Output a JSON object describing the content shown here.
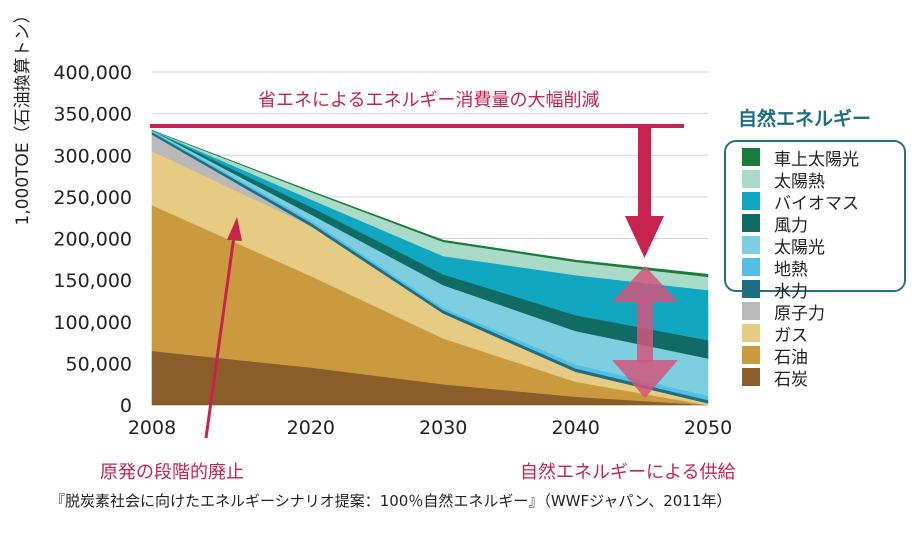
{
  "chart_data": {
    "type": "area",
    "x": [
      2008,
      2020,
      2030,
      2040,
      2050
    ],
    "ylim": [
      0,
      400000
    ],
    "ylabel": "1,000TOE（石油換算トン）",
    "xticks": [
      "2008",
      "2020",
      "2030",
      "2040",
      "2050"
    ],
    "yticks": [
      "0",
      "50,000",
      "100,000",
      "150,000",
      "200,000",
      "250,000",
      "300,000",
      "350,000",
      "400,000"
    ],
    "series": [
      {
        "name": "石炭",
        "color": "#8a5d2b",
        "values": [
          65000,
          45000,
          25000,
          10000,
          0
        ]
      },
      {
        "name": "石油",
        "color": "#c99a3e",
        "values": [
          175000,
          110000,
          55000,
          18000,
          0
        ]
      },
      {
        "name": "ガス",
        "color": "#e6cb82",
        "values": [
          65000,
          60000,
          30000,
          12000,
          2000
        ]
      },
      {
        "name": "原子力",
        "color": "#b9b9b9",
        "values": [
          20000,
          0,
          0,
          0,
          0
        ]
      },
      {
        "name": "水力",
        "color": "#1e6e82",
        "values": [
          3000,
          4000,
          4000,
          4000,
          4000
        ]
      },
      {
        "name": "地熱",
        "color": "#55bfe3",
        "values": [
          1000,
          3000,
          3000,
          5000,
          5000
        ]
      },
      {
        "name": "太陽光",
        "color": "#7dcfe0",
        "values": [
          1000,
          7000,
          27000,
          40000,
          45000
        ]
      },
      {
        "name": "風力",
        "color": "#0f6b64",
        "values": [
          0,
          9000,
          13000,
          19000,
          22000
        ]
      },
      {
        "name": "バイオマス",
        "color": "#12a7c0",
        "values": [
          0,
          9000,
          22000,
          48000,
          60000
        ]
      },
      {
        "name": "太陽熱",
        "color": "#a9dbc8",
        "values": [
          0,
          9000,
          17000,
          16000,
          16000
        ]
      },
      {
        "name": "車上太陽光",
        "color": "#1a7c3a",
        "values": [
          0,
          1000,
          2000,
          2000,
          3000
        ]
      }
    ],
    "annotations": [
      "省エネによるエネルギー消費量の大幅削減",
      "原発の段階的廃止",
      "自然エネルギーによる供給"
    ]
  },
  "legend": {
    "title": "自然エネルギー",
    "items": [
      {
        "label": "車上太陽光",
        "color": "#1a7c3a"
      },
      {
        "label": "太陽熱",
        "color": "#a9dbc8"
      },
      {
        "label": "バイオマス",
        "color": "#12a7c0"
      },
      {
        "label": "風力",
        "color": "#0f6b64"
      },
      {
        "label": "太陽光",
        "color": "#7dcfe0"
      },
      {
        "label": "地熱",
        "color": "#55bfe3"
      },
      {
        "label": "水力",
        "color": "#1e6e82"
      },
      {
        "label": "原子力",
        "color": "#b9b9b9"
      },
      {
        "label": "ガス",
        "color": "#e6cb82"
      },
      {
        "label": "石油",
        "color": "#c99a3e"
      },
      {
        "label": "石炭",
        "color": "#8a5d2b"
      }
    ]
  },
  "annotation_top": "省エネによるエネルギー消費量の大幅削減",
  "annotation_left": "原発の段階的廃止",
  "annotation_right": "自然エネルギーによる供給",
  "caption": "『脱炭素社会に向けたエネルギーシナリオ提案：100％自然エネルギー』（WWFジャパン、2011年）",
  "accent_color": "#c8234e"
}
